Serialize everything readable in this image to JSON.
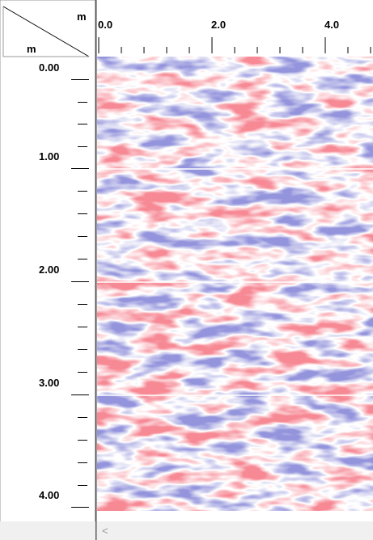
{
  "ruler": {
    "corner_x_unit": "m",
    "corner_y_unit": "m",
    "x_labels": [
      "0.0",
      "2.0",
      "4.0"
    ],
    "y_labels": [
      "0.00",
      "1.00",
      "2.00",
      "3.00",
      "4.00"
    ]
  },
  "scrollbar": {
    "arrow": "<"
  }
}
